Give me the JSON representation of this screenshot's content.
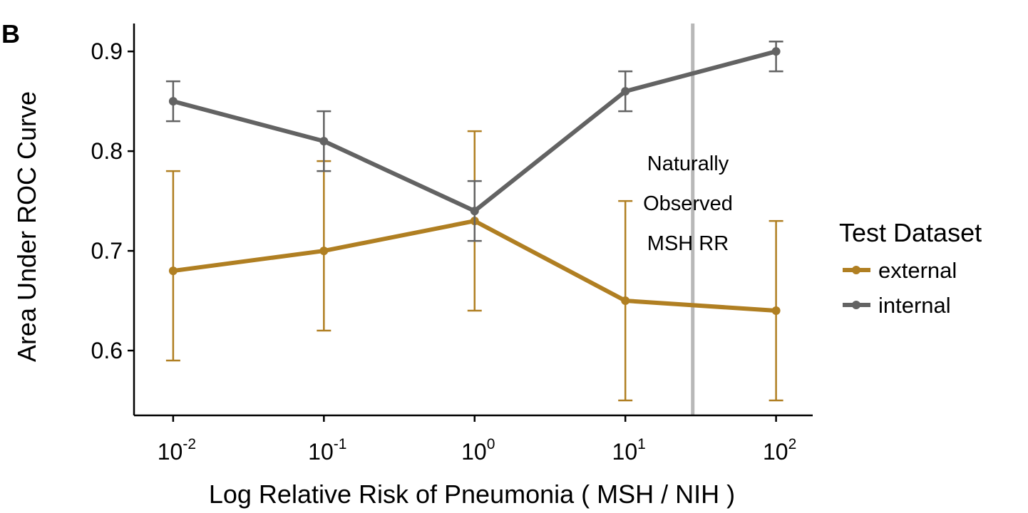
{
  "panel_label": "B",
  "chart_data": {
    "type": "line",
    "xlabel": "Log Relative Risk of Pneumonia ( MSH / NIH )",
    "ylabel": "Area Under ROC Curve",
    "x_scale": "log10",
    "x_ticks": [
      {
        "value": 0.01,
        "base": "10",
        "exponent": "-2"
      },
      {
        "value": 0.1,
        "base": "10",
        "exponent": "-1"
      },
      {
        "value": 1,
        "base": "10",
        "exponent": "0"
      },
      {
        "value": 10,
        "base": "10",
        "exponent": "1"
      },
      {
        "value": 100,
        "base": "10",
        "exponent": "2"
      }
    ],
    "y_ticks": [
      "0.6",
      "0.7",
      "0.8",
      "0.9"
    ],
    "xlim": [
      0.0055,
      175
    ],
    "ylim": [
      0.535,
      0.928
    ],
    "grid": false,
    "legend": {
      "title": "Test Dataset",
      "position": "right"
    },
    "series": [
      {
        "name": "external",
        "color": "#B07F22",
        "points": [
          {
            "x": 0.01,
            "y": 0.68,
            "lo": 0.59,
            "hi": 0.78
          },
          {
            "x": 0.1,
            "y": 0.7,
            "lo": 0.62,
            "hi": 0.79
          },
          {
            "x": 1,
            "y": 0.73,
            "lo": 0.64,
            "hi": 0.82
          },
          {
            "x": 10,
            "y": 0.65,
            "lo": 0.55,
            "hi": 0.75
          },
          {
            "x": 100,
            "y": 0.64,
            "lo": 0.55,
            "hi": 0.73
          }
        ]
      },
      {
        "name": "internal",
        "color": "#636363",
        "points": [
          {
            "x": 0.01,
            "y": 0.85,
            "lo": 0.83,
            "hi": 0.87
          },
          {
            "x": 0.1,
            "y": 0.81,
            "lo": 0.78,
            "hi": 0.84
          },
          {
            "x": 1,
            "y": 0.74,
            "lo": 0.71,
            "hi": 0.77
          },
          {
            "x": 10,
            "y": 0.86,
            "lo": 0.84,
            "hi": 0.88
          },
          {
            "x": 100,
            "y": 0.9,
            "lo": 0.88,
            "hi": 0.91
          }
        ]
      }
    ],
    "reference_line": {
      "x": 28,
      "color": "#B8B8B8",
      "label_lines": [
        "Naturally",
        "Observed",
        "MSH RR"
      ]
    }
  }
}
